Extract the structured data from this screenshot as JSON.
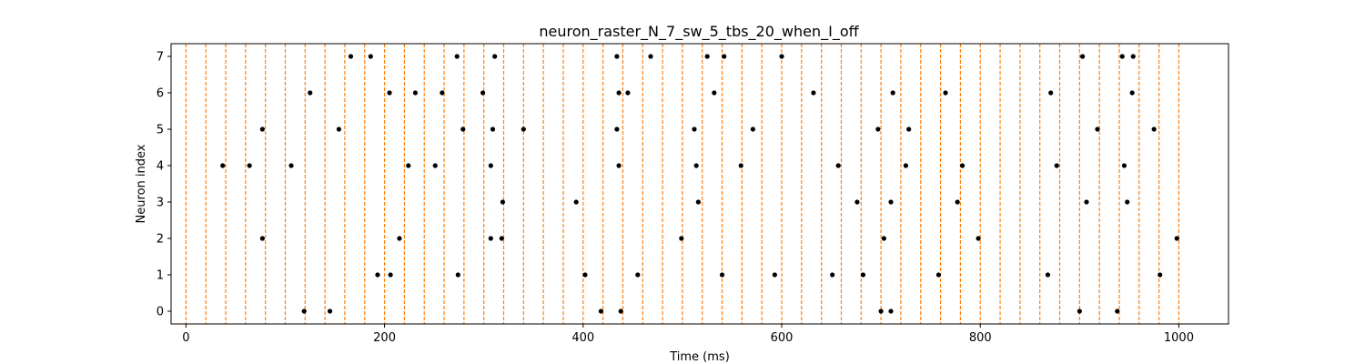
{
  "chart_data": {
    "type": "scatter",
    "title": "neuron_raster_N_7_sw_5_tbs_20_when_I_off",
    "xlabel": "Time (ms)",
    "ylabel": "Neuron index",
    "xlim": [
      -15,
      1050
    ],
    "ylim": [
      -0.35,
      7.35
    ],
    "xticks": [
      0,
      200,
      400,
      600,
      800,
      1000
    ],
    "yticks": [
      0,
      1,
      2,
      3,
      4,
      5,
      6,
      7
    ],
    "grid": false,
    "spike_color": "#000000",
    "event_line_color": "#ff7f0e",
    "event_lines_x": [
      0,
      20,
      40,
      60,
      80,
      100,
      120,
      140,
      160,
      180,
      200,
      220,
      240,
      260,
      280,
      300,
      320,
      340,
      360,
      380,
      400,
      420,
      440,
      460,
      480,
      500,
      520,
      540,
      560,
      580,
      600,
      620,
      640,
      660,
      680,
      700,
      720,
      740,
      760,
      780,
      800,
      820,
      840,
      860,
      880,
      900,
      920,
      940,
      960,
      980,
      1000
    ],
    "series": [
      {
        "values": [
          [
            166,
            7
          ],
          [
            186,
            7
          ],
          [
            273,
            7
          ],
          [
            311,
            7
          ],
          [
            434,
            7
          ],
          [
            468,
            7
          ],
          [
            525,
            7
          ],
          [
            542,
            7
          ],
          [
            600,
            7
          ],
          [
            903,
            7
          ],
          [
            943,
            7
          ],
          [
            954,
            7
          ],
          [
            125,
            6
          ],
          [
            205,
            6
          ],
          [
            231,
            6
          ],
          [
            258,
            6
          ],
          [
            299,
            6
          ],
          [
            436,
            6
          ],
          [
            445,
            6
          ],
          [
            532,
            6
          ],
          [
            632,
            6
          ],
          [
            712,
            6
          ],
          [
            765,
            6
          ],
          [
            871,
            6
          ],
          [
            953,
            6
          ],
          [
            77,
            5
          ],
          [
            154,
            5
          ],
          [
            279,
            5
          ],
          [
            309,
            5
          ],
          [
            340,
            5
          ],
          [
            434,
            5
          ],
          [
            512,
            5
          ],
          [
            571,
            5
          ],
          [
            697,
            5
          ],
          [
            728,
            5
          ],
          [
            918,
            5
          ],
          [
            975,
            5
          ],
          [
            37,
            4
          ],
          [
            64,
            4
          ],
          [
            106,
            4
          ],
          [
            224,
            4
          ],
          [
            251,
            4
          ],
          [
            307,
            4
          ],
          [
            436,
            4
          ],
          [
            514,
            4
          ],
          [
            559,
            4
          ],
          [
            657,
            4
          ],
          [
            725,
            4
          ],
          [
            782,
            4
          ],
          [
            877,
            4
          ],
          [
            945,
            4
          ],
          [
            319,
            3
          ],
          [
            393,
            3
          ],
          [
            516,
            3
          ],
          [
            676,
            3
          ],
          [
            710,
            3
          ],
          [
            777,
            3
          ],
          [
            907,
            3
          ],
          [
            948,
            3
          ],
          [
            77,
            2
          ],
          [
            215,
            2
          ],
          [
            307,
            2
          ],
          [
            318,
            2
          ],
          [
            499,
            2
          ],
          [
            703,
            2
          ],
          [
            798,
            2
          ],
          [
            998,
            2
          ],
          [
            193,
            1
          ],
          [
            206,
            1
          ],
          [
            274,
            1
          ],
          [
            402,
            1
          ],
          [
            455,
            1
          ],
          [
            540,
            1
          ],
          [
            593,
            1
          ],
          [
            651,
            1
          ],
          [
            682,
            1
          ],
          [
            758,
            1
          ],
          [
            868,
            1
          ],
          [
            981,
            1
          ],
          [
            119,
            0
          ],
          [
            145,
            0
          ],
          [
            418,
            0
          ],
          [
            438,
            0
          ],
          [
            700,
            0
          ],
          [
            710,
            0
          ],
          [
            900,
            0
          ],
          [
            938,
            0
          ]
        ]
      }
    ]
  }
}
